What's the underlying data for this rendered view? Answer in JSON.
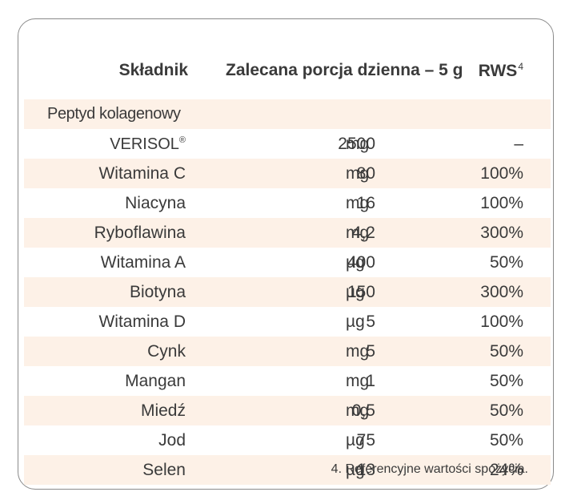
{
  "table": {
    "headers": {
      "ingredient": "Składnik",
      "portion": "Zalecana porcja dzienna – 5 g",
      "rws": "RWS",
      "rws_sup": "4"
    },
    "group_label": "Peptyd kolagenowy",
    "verisol": {
      "name": "VERISOL",
      "mark": "®",
      "amount": "2500",
      "unit": "mg",
      "rws": "–"
    },
    "rows": [
      {
        "name": "Witamina C",
        "amount": "80",
        "unit": "mg",
        "rws": "100%"
      },
      {
        "name": "Niacyna",
        "amount": "16",
        "unit": "mg",
        "rws": "100%"
      },
      {
        "name": "Ryboflawina",
        "amount": "4,2",
        "unit": "mg",
        "rws": "300%"
      },
      {
        "name": "Witamina A",
        "amount": "400",
        "unit": "µg",
        "rws": "50%"
      },
      {
        "name": "Biotyna",
        "amount": "150",
        "unit": "µg",
        "rws": "300%"
      },
      {
        "name": "Witamina D",
        "amount": "5",
        "unit": "µg",
        "rws": "100%"
      },
      {
        "name": "Cynk",
        "amount": "5",
        "unit": "mg",
        "rws": "50%"
      },
      {
        "name": "Mangan",
        "amount": "1",
        "unit": "mg",
        "rws": "50%"
      },
      {
        "name": "Miedź",
        "amount": "0,5",
        "unit": "mg",
        "rws": "50%"
      },
      {
        "name": "Jod",
        "amount": "75",
        "unit": "µg",
        "rws": "50%"
      },
      {
        "name": "Selen",
        "amount": "13",
        "unit": "µg",
        "rws": "24%"
      }
    ]
  },
  "footnote": "4. Referencyjne wartości spożycia.",
  "colors": {
    "shade": "#fdf1e7",
    "border": "#8a8a8a",
    "text": "#3a3a3a"
  }
}
